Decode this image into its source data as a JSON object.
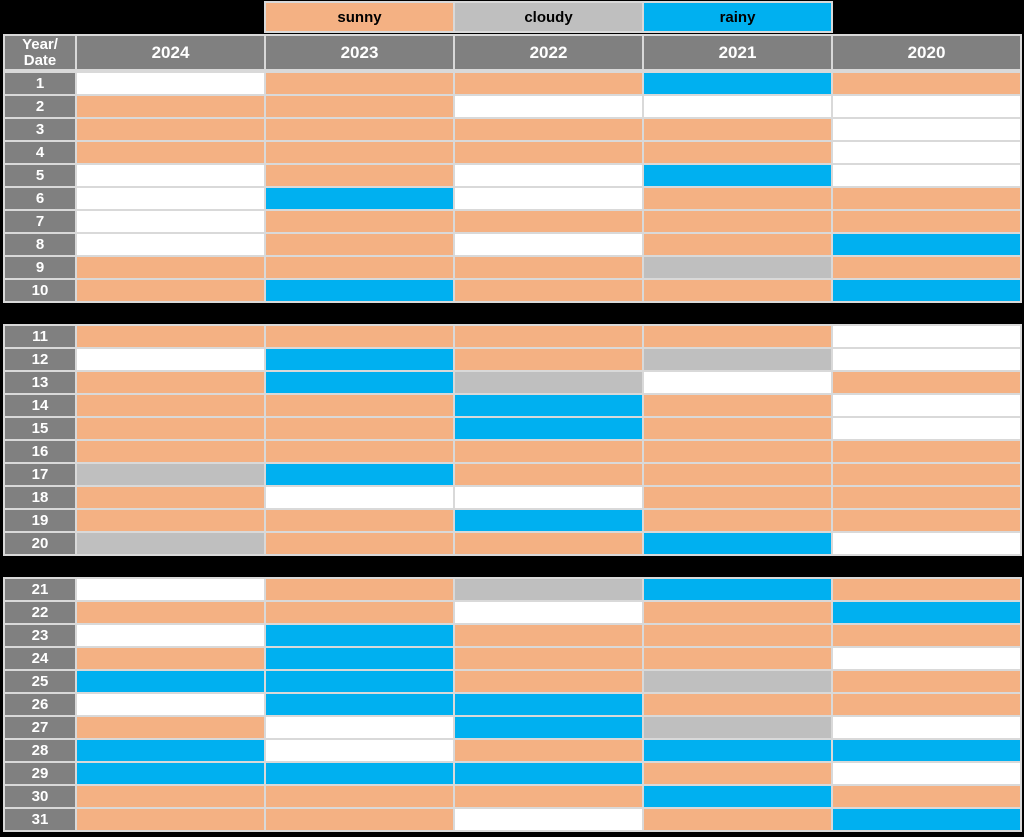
{
  "page": {
    "background": "#000000"
  },
  "legend": {
    "items": [
      {
        "key": "sunny",
        "label": "sunny"
      },
      {
        "key": "cloudy",
        "label": "cloudy"
      },
      {
        "key": "rainy",
        "label": "rainy"
      }
    ]
  },
  "header": {
    "corner": "Year/\nDate",
    "years": [
      "2024",
      "2023",
      "2022",
      "2021",
      "2020"
    ]
  },
  "colors": {
    "sunny": "#F4B183",
    "cloudy": "#BFBFBF",
    "rainy": "#00B0F0",
    "none": "#FFFFFF",
    "header_bg": "#808080",
    "header_text": "#FFFFFF",
    "grid_line": "#D9D9D9",
    "background": "#000000"
  },
  "chart_data": {
    "type": "heatmap",
    "title": "",
    "row_header": "Year/Date",
    "columns": [
      "2024",
      "2023",
      "2022",
      "2021",
      "2020"
    ],
    "row_labels": [
      "1",
      "2",
      "3",
      "4",
      "5",
      "6",
      "7",
      "8",
      "9",
      "10",
      "11",
      "12",
      "13",
      "14",
      "15",
      "16",
      "17",
      "18",
      "19",
      "20",
      "21",
      "22",
      "23",
      "24",
      "25",
      "26",
      "27",
      "28",
      "29",
      "30",
      "31"
    ],
    "legend_entries": [
      "sunny",
      "cloudy",
      "rainy"
    ],
    "sections": [
      [
        1,
        10
      ],
      [
        11,
        20
      ],
      [
        21,
        31
      ]
    ],
    "values": [
      [
        "",
        "sunny",
        "sunny",
        "rainy",
        "sunny"
      ],
      [
        "sunny",
        "sunny",
        "",
        "",
        ""
      ],
      [
        "sunny",
        "sunny",
        "sunny",
        "sunny",
        ""
      ],
      [
        "sunny",
        "sunny",
        "sunny",
        "sunny",
        ""
      ],
      [
        "",
        "sunny",
        "",
        "rainy",
        ""
      ],
      [
        "",
        "rainy",
        "",
        "sunny",
        "sunny"
      ],
      [
        "",
        "sunny",
        "sunny",
        "sunny",
        "sunny"
      ],
      [
        "",
        "sunny",
        "",
        "sunny",
        "rainy"
      ],
      [
        "sunny",
        "sunny",
        "sunny",
        "cloudy",
        "sunny"
      ],
      [
        "sunny",
        "rainy",
        "sunny",
        "sunny",
        "rainy"
      ],
      [
        "sunny",
        "sunny",
        "sunny",
        "sunny",
        ""
      ],
      [
        "",
        "rainy",
        "sunny",
        "cloudy",
        ""
      ],
      [
        "sunny",
        "rainy",
        "cloudy",
        "",
        "sunny"
      ],
      [
        "sunny",
        "sunny",
        "rainy",
        "sunny",
        ""
      ],
      [
        "sunny",
        "sunny",
        "rainy",
        "sunny",
        ""
      ],
      [
        "sunny",
        "sunny",
        "sunny",
        "sunny",
        "sunny"
      ],
      [
        "cloudy",
        "rainy",
        "sunny",
        "sunny",
        "sunny"
      ],
      [
        "sunny",
        "",
        "",
        "sunny",
        "sunny"
      ],
      [
        "sunny",
        "sunny",
        "rainy",
        "sunny",
        "sunny"
      ],
      [
        "cloudy",
        "sunny",
        "sunny",
        "rainy",
        ""
      ],
      [
        "",
        "sunny",
        "cloudy",
        "rainy",
        "sunny"
      ],
      [
        "sunny",
        "sunny",
        "",
        "sunny",
        "rainy"
      ],
      [
        "",
        "rainy",
        "sunny",
        "sunny",
        "sunny"
      ],
      [
        "sunny",
        "rainy",
        "sunny",
        "sunny",
        ""
      ],
      [
        "rainy",
        "rainy",
        "sunny",
        "cloudy",
        "sunny"
      ],
      [
        "",
        "rainy",
        "rainy",
        "sunny",
        "sunny"
      ],
      [
        "sunny",
        "",
        "rainy",
        "cloudy",
        ""
      ],
      [
        "rainy",
        "",
        "sunny",
        "rainy",
        "rainy"
      ],
      [
        "rainy",
        "rainy",
        "rainy",
        "sunny",
        ""
      ],
      [
        "sunny",
        "sunny",
        "sunny",
        "rainy",
        "sunny"
      ],
      [
        "sunny",
        "sunny",
        "",
        "sunny",
        "rainy"
      ]
    ]
  }
}
